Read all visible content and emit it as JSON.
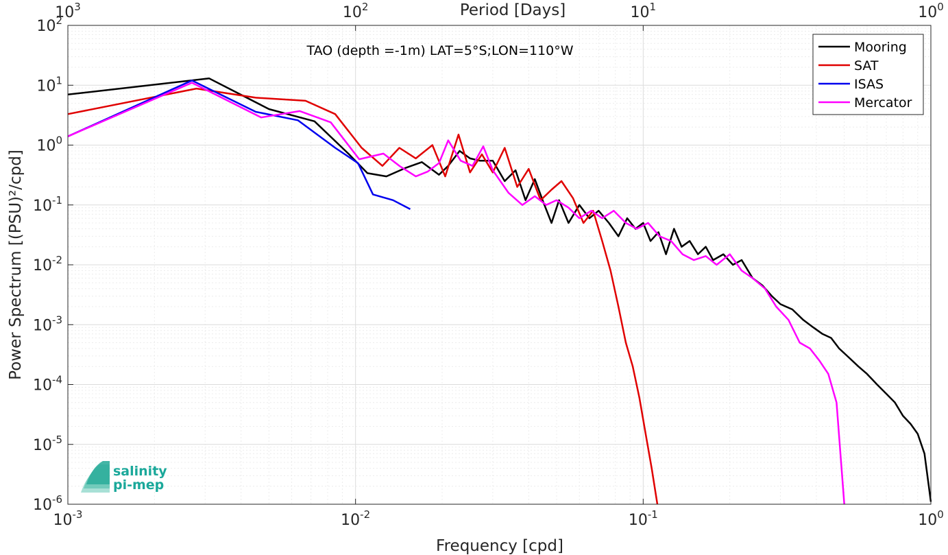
{
  "colors": {
    "Mooring": "#000000",
    "SAT": "#e00000",
    "ISAS": "#0000ee",
    "Mercator": "#ff00ff",
    "logo": "#1aa89a"
  },
  "logo": {
    "line1": "salinity",
    "line2": "pi-mep",
    "icon": "salinity-waves-icon"
  },
  "chart_data": {
    "type": "line",
    "title": "TAO (depth =-1m) LAT=5°S;LON=110°W",
    "xlabel": "Frequency [cpd]",
    "ylabel": "Power Spectrum [(PSU)²/cpd]",
    "top_xlabel": "Period [Days]",
    "xscale": "log",
    "yscale": "log",
    "xlim": [
      0.001,
      1
    ],
    "ylim": [
      1e-06,
      100
    ],
    "grid": true,
    "legend_position": "top-right",
    "x_ticks": [
      {
        "value": 0.001,
        "base": "10",
        "exp": "-3"
      },
      {
        "value": 0.01,
        "base": "10",
        "exp": "-2"
      },
      {
        "value": 0.1,
        "base": "10",
        "exp": "-1"
      },
      {
        "value": 1,
        "base": "10",
        "exp": "0"
      }
    ],
    "top_ticks": [
      {
        "value": 1000,
        "base": "10",
        "exp": "3"
      },
      {
        "value": 100,
        "base": "10",
        "exp": "2"
      },
      {
        "value": 10,
        "base": "10",
        "exp": "1"
      },
      {
        "value": 1,
        "base": "10",
        "exp": "0"
      }
    ],
    "y_ticks": [
      {
        "value": 1e-06,
        "base": "10",
        "exp": "-6"
      },
      {
        "value": 1e-05,
        "base": "10",
        "exp": "-5"
      },
      {
        "value": 0.0001,
        "base": "10",
        "exp": "-4"
      },
      {
        "value": 0.001,
        "base": "10",
        "exp": "-3"
      },
      {
        "value": 0.01,
        "base": "10",
        "exp": "-2"
      },
      {
        "value": 0.1,
        "base": "10",
        "exp": "-1"
      },
      {
        "value": 1,
        "base": "10",
        "exp": "0"
      },
      {
        "value": 10,
        "base": "10",
        "exp": "1"
      },
      {
        "value": 100,
        "base": "10",
        "exp": "2"
      }
    ],
    "series": [
      {
        "name": "Mooring",
        "x": [
          0.001,
          0.0031,
          0.005,
          0.0072,
          0.0095,
          0.011,
          0.0128,
          0.015,
          0.017,
          0.0195,
          0.021,
          0.023,
          0.025,
          0.027,
          0.03,
          0.033,
          0.036,
          0.039,
          0.042,
          0.045,
          0.048,
          0.051,
          0.055,
          0.06,
          0.065,
          0.07,
          0.076,
          0.082,
          0.088,
          0.094,
          0.1,
          0.106,
          0.113,
          0.12,
          0.128,
          0.136,
          0.145,
          0.155,
          0.165,
          0.175,
          0.19,
          0.205,
          0.22,
          0.24,
          0.26,
          0.28,
          0.3,
          0.33,
          0.36,
          0.39,
          0.42,
          0.45,
          0.48,
          0.52,
          0.56,
          0.6,
          0.65,
          0.7,
          0.75,
          0.8,
          0.85,
          0.9,
          0.95,
          1.0
        ],
        "y": [
          7.0,
          13.0,
          4.0,
          2.5,
          0.7,
          0.34,
          0.3,
          0.42,
          0.52,
          0.32,
          0.45,
          0.8,
          0.6,
          0.55,
          0.55,
          0.25,
          0.38,
          0.12,
          0.27,
          0.11,
          0.05,
          0.12,
          0.05,
          0.1,
          0.06,
          0.08,
          0.05,
          0.03,
          0.06,
          0.04,
          0.05,
          0.025,
          0.035,
          0.015,
          0.04,
          0.02,
          0.025,
          0.015,
          0.02,
          0.012,
          0.015,
          0.01,
          0.012,
          0.006,
          0.0045,
          0.003,
          0.0022,
          0.0018,
          0.0012,
          0.0009,
          0.0007,
          0.0006,
          0.0004,
          0.00028,
          0.0002,
          0.00015,
          0.0001,
          7e-05,
          5e-05,
          3e-05,
          2.2e-05,
          1.5e-05,
          7e-06,
          1.1e-06
        ]
      },
      {
        "name": "SAT",
        "x": [
          0.001,
          0.0028,
          0.0045,
          0.0067,
          0.0085,
          0.0105,
          0.0124,
          0.0142,
          0.0162,
          0.0185,
          0.0205,
          0.0228,
          0.025,
          0.0275,
          0.03,
          0.033,
          0.0365,
          0.04,
          0.044,
          0.048,
          0.052,
          0.057,
          0.062,
          0.067,
          0.072,
          0.077,
          0.082,
          0.087,
          0.092,
          0.097,
          0.102,
          0.107,
          0.112
        ],
        "y": [
          3.3,
          8.8,
          6.2,
          5.5,
          3.3,
          0.9,
          0.45,
          0.9,
          0.6,
          1.0,
          0.3,
          1.5,
          0.35,
          0.7,
          0.35,
          0.9,
          0.2,
          0.4,
          0.12,
          0.18,
          0.25,
          0.13,
          0.05,
          0.08,
          0.025,
          0.008,
          0.002,
          0.0005,
          0.0002,
          6e-05,
          1.5e-05,
          4e-06,
          1e-06
        ]
      },
      {
        "name": "ISAS",
        "x": [
          0.001,
          0.0027,
          0.0045,
          0.0063,
          0.0085,
          0.0102,
          0.0115,
          0.0135,
          0.0155
        ],
        "y": [
          1.4,
          12.0,
          3.6,
          2.6,
          0.9,
          0.5,
          0.15,
          0.12,
          0.085
        ]
      },
      {
        "name": "Mercator",
        "x": [
          0.001,
          0.0027,
          0.0047,
          0.0064,
          0.0082,
          0.0103,
          0.0125,
          0.0142,
          0.0162,
          0.0178,
          0.0195,
          0.021,
          0.0232,
          0.0255,
          0.0278,
          0.03,
          0.034,
          0.038,
          0.042,
          0.046,
          0.05,
          0.055,
          0.06,
          0.066,
          0.072,
          0.079,
          0.087,
          0.095,
          0.104,
          0.114,
          0.125,
          0.137,
          0.15,
          0.165,
          0.18,
          0.2,
          0.22,
          0.24,
          0.265,
          0.29,
          0.32,
          0.35,
          0.38,
          0.41,
          0.44,
          0.47,
          0.5
        ],
        "y": [
          1.4,
          11.0,
          2.9,
          3.7,
          2.4,
          0.58,
          0.72,
          0.45,
          0.3,
          0.36,
          0.5,
          1.2,
          0.55,
          0.45,
          0.95,
          0.38,
          0.16,
          0.1,
          0.14,
          0.1,
          0.12,
          0.09,
          0.06,
          0.08,
          0.06,
          0.08,
          0.05,
          0.04,
          0.05,
          0.03,
          0.025,
          0.015,
          0.012,
          0.014,
          0.01,
          0.015,
          0.008,
          0.006,
          0.004,
          0.002,
          0.0012,
          0.0005,
          0.0004,
          0.00025,
          0.00015,
          5e-05,
          1e-06
        ]
      }
    ]
  }
}
